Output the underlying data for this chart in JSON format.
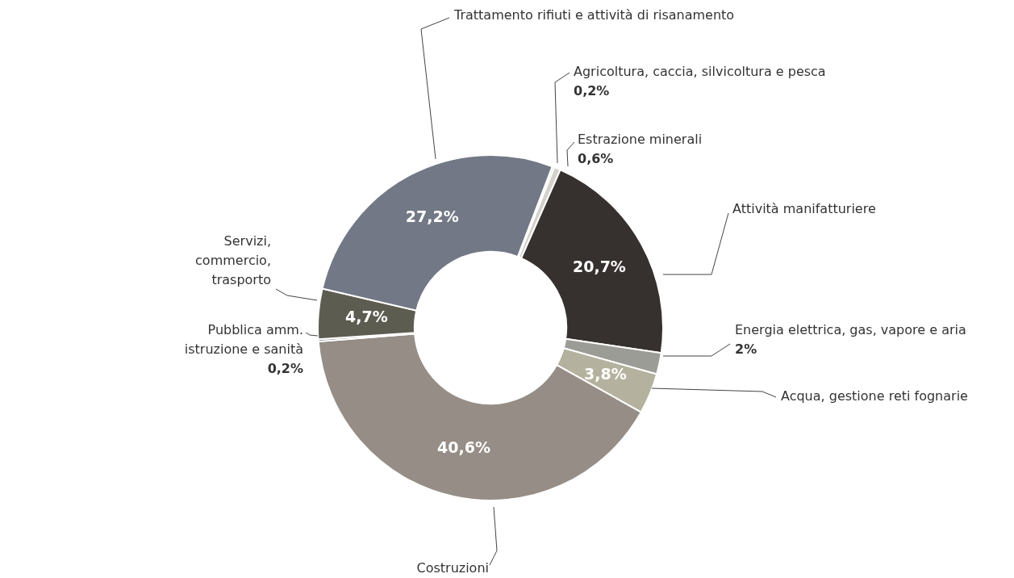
{
  "chart_data": {
    "type": "donut",
    "categories": [
      "Agricoltura, caccia, silvicoltura e pesca",
      "Estrazione minerali",
      "Attività manifatturiere",
      "Energia elettrica, gas, vapore e aria",
      "Acqua, gestione reti fognarie",
      "Costruzioni",
      "Pubblica amm. istruzione e sanità",
      "Servizi, commercio, trasporto",
      "Trattamento rifiuti e attività di risanamento"
    ],
    "values": [
      0.2,
      0.6,
      20.7,
      2,
      3.8,
      40.6,
      0.2,
      4.7,
      27.2
    ],
    "colors": [
      "#c9c7c1",
      "#d3d1cb",
      "#36302e",
      "#9c9c96",
      "#b4b29e",
      "#958d86",
      "#6f6f72",
      "#5d5c50",
      "#737886"
    ],
    "value_labels": [
      "0,2%",
      "0,6%",
      "20,7%",
      "2%",
      "3,8%",
      "40,6%",
      "0,2%",
      "4,7%",
      "27,2%"
    ]
  }
}
